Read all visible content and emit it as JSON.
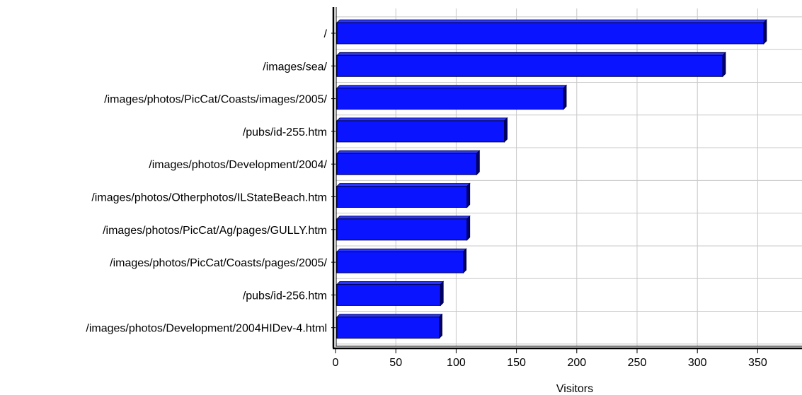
{
  "colors": {
    "bar_front": "#0a14ff",
    "bar_top": "#2a36ff",
    "bar_side": "#000066",
    "bar_outline": "#00004a",
    "grid": "#c8c8c8",
    "axis": "#000000"
  },
  "chart_data": {
    "type": "bar",
    "orientation": "horizontal",
    "categories": [
      "/",
      "/images/sea/",
      "/images/photos/PicCat/Coasts/images/2005/",
      "/pubs/id-255.htm",
      "/images/photos/Development/2004/",
      "/images/photos/Otherphotos/ILStateBeach.htm",
      "/images/photos/PicCat/Ag/pages/GULLY.htm",
      "/images/photos/PicCat/Coasts/pages/2005/",
      "/pubs/id-256.htm",
      "/images/photos/Development/2004HIDev-4.html"
    ],
    "values": [
      355,
      321,
      189,
      140,
      117,
      109,
      109,
      106,
      87,
      86
    ],
    "xlabel": "Visitors",
    "ylabel": "",
    "xlim": [
      0,
      385
    ],
    "xticks": [
      0,
      50,
      100,
      150,
      200,
      250,
      300,
      350
    ],
    "grid": true,
    "legend": "none"
  }
}
